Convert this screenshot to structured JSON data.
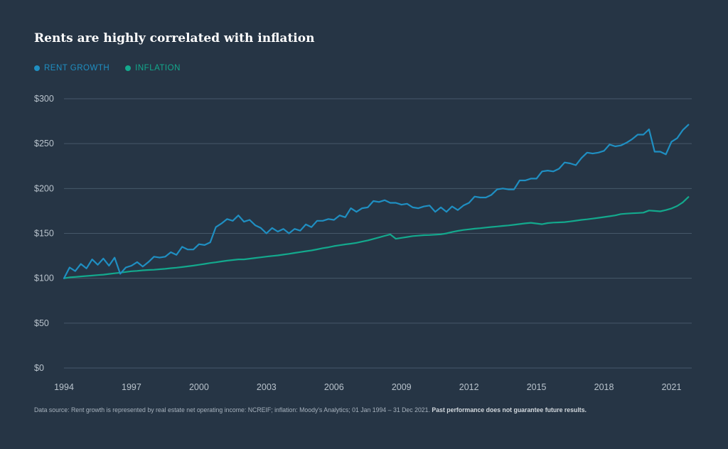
{
  "chart_data": {
    "type": "line",
    "title": "Rents are highly correlated with inflation",
    "xlabel": "",
    "ylabel": "",
    "x_ticks": [
      "1994",
      "1997",
      "2000",
      "2003",
      "2006",
      "2009",
      "2012",
      "2015",
      "2018",
      "2021"
    ],
    "y_ticks": [
      "$0",
      "$50",
      "$100",
      "$150",
      "$200",
      "$250",
      "$300"
    ],
    "xlim": [
      1994,
      2021.9
    ],
    "ylim": [
      0,
      300
    ],
    "grid": true,
    "legend": "top-left",
    "series": [
      {
        "name": "RENT GROWTH",
        "color": "#1f8fc2",
        "x": [
          1994.0,
          1994.25,
          1994.5,
          1994.75,
          1995.0,
          1995.25,
          1995.5,
          1995.75,
          1996.0,
          1996.25,
          1996.5,
          1996.75,
          1997.0,
          1997.25,
          1997.5,
          1997.75,
          1998.0,
          1998.25,
          1998.5,
          1998.75,
          1999.0,
          1999.25,
          1999.5,
          1999.75,
          2000.0,
          2000.25,
          2000.5,
          2000.75,
          2001.0,
          2001.25,
          2001.5,
          2001.75,
          2002.0,
          2002.25,
          2002.5,
          2002.75,
          2003.0,
          2003.25,
          2003.5,
          2003.75,
          2004.0,
          2004.25,
          2004.5,
          2004.75,
          2005.0,
          2005.25,
          2005.5,
          2005.75,
          2006.0,
          2006.25,
          2006.5,
          2006.75,
          2007.0,
          2007.25,
          2007.5,
          2007.75,
          2008.0,
          2008.25,
          2008.5,
          2008.75,
          2009.0,
          2009.25,
          2009.5,
          2009.75,
          2010.0,
          2010.25,
          2010.5,
          2010.75,
          2011.0,
          2011.25,
          2011.5,
          2011.75,
          2012.0,
          2012.25,
          2012.5,
          2012.75,
          2013.0,
          2013.25,
          2013.5,
          2013.75,
          2014.0,
          2014.25,
          2014.5,
          2014.75,
          2015.0,
          2015.25,
          2015.5,
          2015.75,
          2016.0,
          2016.25,
          2016.5,
          2016.75,
          2017.0,
          2017.25,
          2017.5,
          2017.75,
          2018.0,
          2018.25,
          2018.5,
          2018.75,
          2019.0,
          2019.25,
          2019.5,
          2019.75,
          2020.0,
          2020.25,
          2020.5,
          2020.75,
          2021.0,
          2021.25,
          2021.5,
          2021.75
        ],
        "values": [
          100,
          112,
          108,
          116,
          111,
          121,
          115,
          122,
          114,
          123,
          105,
          112,
          114,
          118,
          113,
          118,
          124,
          123,
          124,
          129,
          126,
          135,
          132,
          132,
          138,
          137,
          140,
          157,
          161,
          166,
          164,
          170,
          163,
          165,
          159,
          156,
          150,
          156,
          152,
          155,
          150,
          155,
          153,
          160,
          157,
          164,
          164,
          166,
          165,
          170,
          168,
          178,
          174,
          178,
          179,
          186,
          185,
          187,
          184,
          184,
          182,
          183,
          179,
          178,
          180,
          181,
          174,
          179,
          174,
          180,
          176,
          181,
          184,
          191,
          190,
          190,
          193,
          199,
          200,
          199,
          199,
          209,
          209,
          211,
          211,
          219,
          220,
          219,
          222,
          229,
          228,
          226,
          234,
          240,
          239,
          240,
          242,
          249,
          247,
          248,
          251,
          255,
          260,
          260,
          266,
          241,
          241,
          238,
          252,
          256,
          265,
          271
        ]
      },
      {
        "name": "INFLATION",
        "color": "#13a98d",
        "x": [
          1994.0,
          1994.25,
          1994.5,
          1994.75,
          1995.0,
          1995.25,
          1995.5,
          1995.75,
          1996.0,
          1996.25,
          1996.5,
          1996.75,
          1997.0,
          1997.25,
          1997.5,
          1997.75,
          1998.0,
          1998.25,
          1998.5,
          1998.75,
          1999.0,
          1999.25,
          1999.5,
          1999.75,
          2000.0,
          2000.25,
          2000.5,
          2000.75,
          2001.0,
          2001.25,
          2001.5,
          2001.75,
          2002.0,
          2002.25,
          2002.5,
          2002.75,
          2003.0,
          2003.25,
          2003.5,
          2003.75,
          2004.0,
          2004.25,
          2004.5,
          2004.75,
          2005.0,
          2005.25,
          2005.5,
          2005.75,
          2006.0,
          2006.25,
          2006.5,
          2006.75,
          2007.0,
          2007.25,
          2007.5,
          2007.75,
          2008.0,
          2008.25,
          2008.5,
          2008.75,
          2009.0,
          2009.25,
          2009.5,
          2009.75,
          2010.0,
          2010.25,
          2010.5,
          2010.75,
          2011.0,
          2011.25,
          2011.5,
          2011.75,
          2012.0,
          2012.25,
          2012.5,
          2012.75,
          2013.0,
          2013.25,
          2013.5,
          2013.75,
          2014.0,
          2014.25,
          2014.5,
          2014.75,
          2015.0,
          2015.25,
          2015.5,
          2015.75,
          2016.0,
          2016.25,
          2016.5,
          2016.75,
          2017.0,
          2017.25,
          2017.5,
          2017.75,
          2018.0,
          2018.25,
          2018.5,
          2018.75,
          2019.0,
          2019.25,
          2019.5,
          2019.75,
          2020.0,
          2020.25,
          2020.5,
          2020.75,
          2021.0,
          2021.25,
          2021.5,
          2021.75
        ],
        "values": [
          100,
          101,
          101.5,
          102,
          102.5,
          103,
          103.5,
          104,
          104.8,
          105.5,
          106.2,
          107,
          107.8,
          108.2,
          108.8,
          109.2,
          109.5,
          110,
          110.5,
          111.2,
          111.8,
          112.5,
          113.3,
          114.1,
          115,
          116,
          117,
          117.8,
          118.7,
          119.6,
          120.3,
          121,
          121,
          121.8,
          122.6,
          123.3,
          124.1,
          124.8,
          125.5,
          126.3,
          127.2,
          128.2,
          129.2,
          130.1,
          131,
          132.2,
          133.5,
          134.5,
          135.8,
          136.8,
          137.7,
          138.5,
          139.5,
          140.8,
          142.2,
          143.8,
          145.5,
          147.2,
          148.9,
          144,
          145,
          146,
          147,
          147.5,
          148,
          148.2,
          148.6,
          149,
          150,
          151.5,
          152.8,
          153.8,
          154.5,
          155.2,
          155.8,
          156.5,
          157.1,
          157.7,
          158.3,
          158.9,
          159.6,
          160.4,
          161.2,
          161.8,
          161,
          160.2,
          161.5,
          162,
          162.3,
          162.6,
          163.3,
          164.2,
          165,
          165.7,
          166.5,
          167.3,
          168.2,
          169.1,
          170,
          171.5,
          172,
          172.4,
          172.7,
          173.1,
          175.5,
          175,
          174.5,
          176,
          177.8,
          180.5,
          184.5,
          190.5
        ]
      }
    ]
  },
  "footnote": {
    "text": "Data source: Rent growth is represented by real estate net operating income: NCREIF; inflation: Moody's Analytics; 01 Jan 1994 – 31 Dec 2021.",
    "bold": "Past performance does not guarantee future results."
  },
  "colors": {
    "background": "#263545",
    "grid": "#46586a",
    "axis_text": "#b9c3cc"
  }
}
